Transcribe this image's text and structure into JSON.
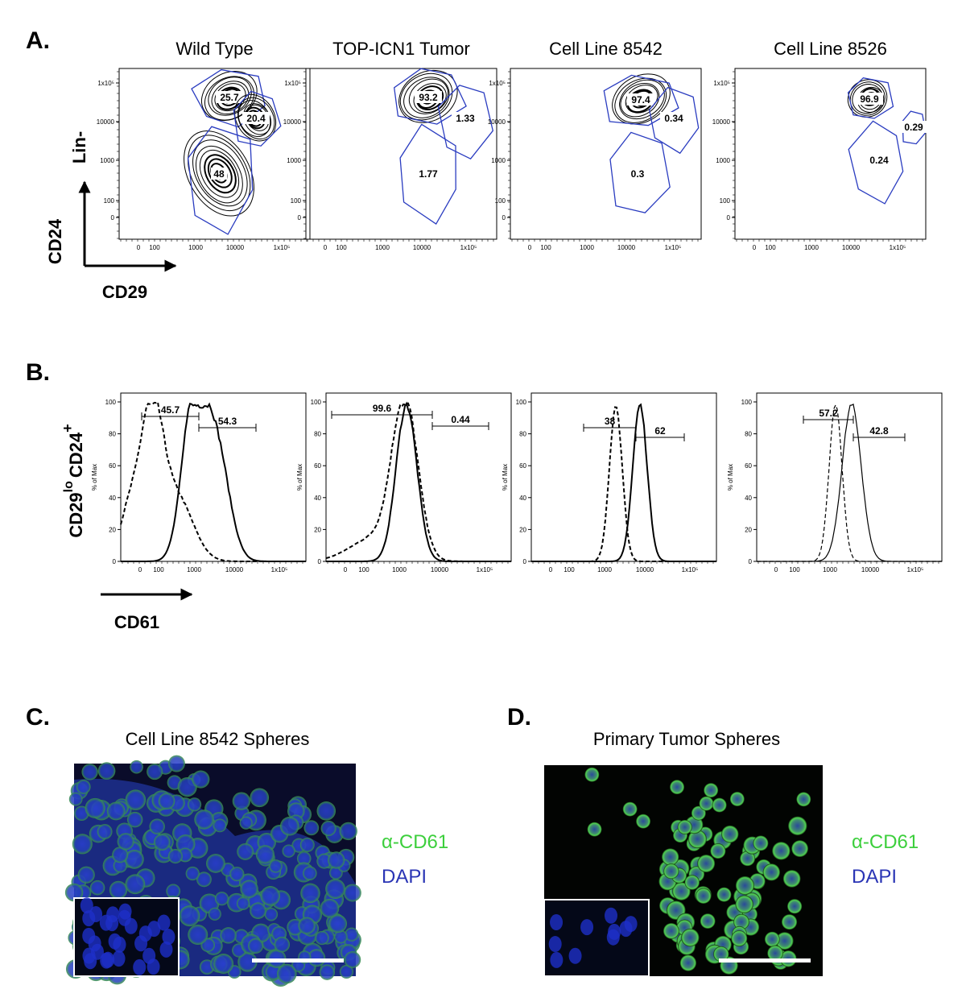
{
  "panel_a": {
    "label": "A.",
    "y_axis_label": "Lin-",
    "y_arrow_label": "CD24",
    "x_arrow_label": "CD29",
    "y_ticks": [
      "1x10⁵",
      "10000",
      "1000",
      "100",
      "0"
    ],
    "x_ticks": [
      "0",
      "100",
      "1000",
      "10000",
      "1x10⁵"
    ],
    "plots": [
      {
        "title": "Wild Type",
        "gates": [
          25.7,
          20.4,
          48
        ]
      },
      {
        "title": "TOP-ICN1 Tumor",
        "gates": [
          93.2,
          1.33,
          1.77
        ]
      },
      {
        "title": "Cell Line 8542",
        "gates": [
          97.4,
          0.34,
          0.3
        ]
      },
      {
        "title": "Cell Line 8526",
        "gates": [
          96.9,
          0.29,
          0.24
        ]
      }
    ]
  },
  "panel_b": {
    "label": "B.",
    "y_label": {
      "part1": "CD29",
      "sup1": "lo",
      "part2": "CD24",
      "sup2": "+"
    },
    "x_arrow_label": "CD61",
    "y_axis_title": "% of Max",
    "y_ticks": [
      0,
      20,
      40,
      60,
      80,
      100
    ],
    "x_ticks": [
      "0",
      "100",
      "1000",
      "10000",
      "1x10⁵"
    ],
    "plots": [
      {
        "gates": [
          45.7,
          54.3
        ]
      },
      {
        "gates": [
          99.6,
          0.44
        ]
      },
      {
        "gates": [
          38,
          62
        ]
      },
      {
        "gates": [
          57.2,
          42.8
        ]
      }
    ]
  },
  "panel_c": {
    "label": "C.",
    "title": "Cell Line 8542 Spheres",
    "legend": [
      "α-CD61",
      "DAPI"
    ]
  },
  "panel_d": {
    "label": "D.",
    "title": "Primary Tumor Spheres",
    "legend": [
      "α-CD61",
      "DAPI"
    ]
  }
}
